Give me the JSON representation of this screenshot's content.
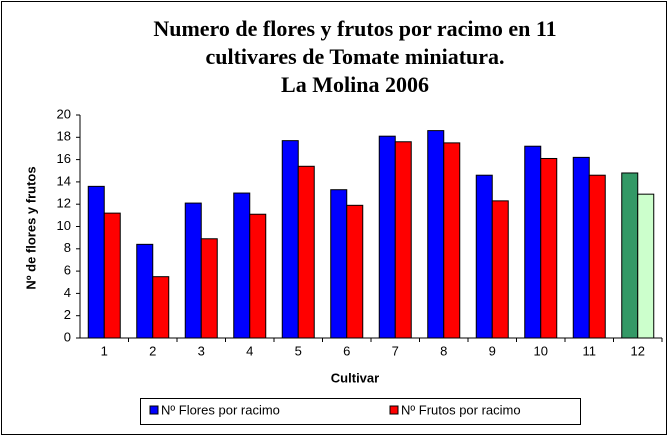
{
  "chart_data": {
    "type": "bar",
    "title": [
      "Numero de flores y frutos por racimo en 11",
      "cultivares de Tomate miniatura.",
      "La Molina 2006"
    ],
    "x_label": "Cultivar",
    "y_label": "Nº de flores y frutos",
    "categories": [
      "1",
      "2",
      "3",
      "4",
      "5",
      "6",
      "7",
      "8",
      "9",
      "10",
      "11",
      "12"
    ],
    "series": [
      {
        "name": "Nº Flores por racimo",
        "color": "#0000ff",
        "colors": [
          "#0000ff",
          "#0000ff",
          "#0000ff",
          "#0000ff",
          "#0000ff",
          "#0000ff",
          "#0000ff",
          "#0000ff",
          "#0000ff",
          "#0000ff",
          "#0000ff",
          "#339966"
        ],
        "values": [
          13.6,
          8.4,
          12.1,
          13.0,
          17.7,
          13.3,
          18.1,
          18.6,
          14.6,
          17.2,
          16.2,
          14.8
        ]
      },
      {
        "name": "Nº Frutos por racimo",
        "color": "#ff0000",
        "colors": [
          "#ff0000",
          "#ff0000",
          "#ff0000",
          "#ff0000",
          "#ff0000",
          "#ff0000",
          "#ff0000",
          "#ff0000",
          "#ff0000",
          "#ff0000",
          "#ff0000",
          "#ccffcc"
        ],
        "values": [
          11.2,
          5.5,
          8.9,
          11.1,
          15.4,
          11.9,
          17.6,
          17.5,
          12.3,
          16.1,
          14.6,
          12.9
        ]
      }
    ],
    "ylim": [
      0,
      20
    ],
    "yticks": [
      0,
      2,
      4,
      6,
      8,
      10,
      12,
      14,
      16,
      18,
      20
    ],
    "legend": "bottom"
  }
}
